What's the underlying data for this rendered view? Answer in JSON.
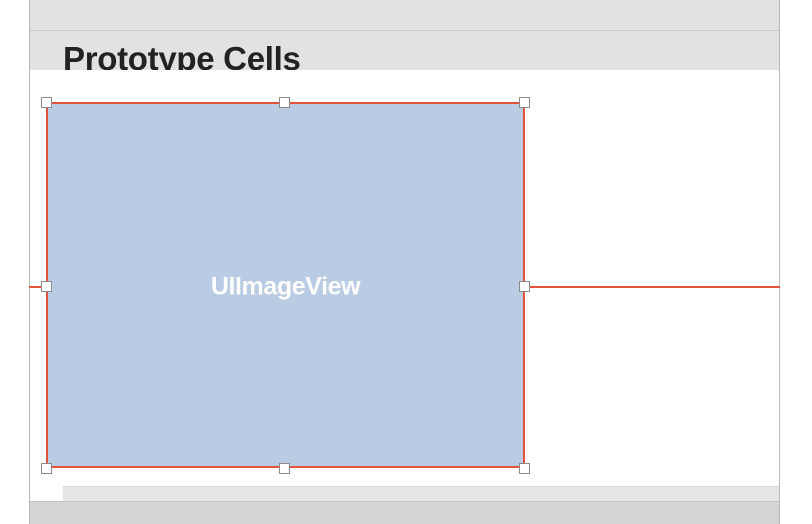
{
  "section_header": {
    "title": "Prototype Cells"
  },
  "image_view": {
    "label": "UIImageView",
    "fill_color": "#bacbe4",
    "selection_color": "#e5533d"
  },
  "colors": {
    "header_background": "#e2e2e2",
    "bottom_bar": "#d4d4d4",
    "guide_line": "#e5533d"
  },
  "handles": [
    "top-left",
    "top-center",
    "top-right",
    "middle-left",
    "middle-right",
    "bottom-left",
    "bottom-center",
    "bottom-right"
  ]
}
